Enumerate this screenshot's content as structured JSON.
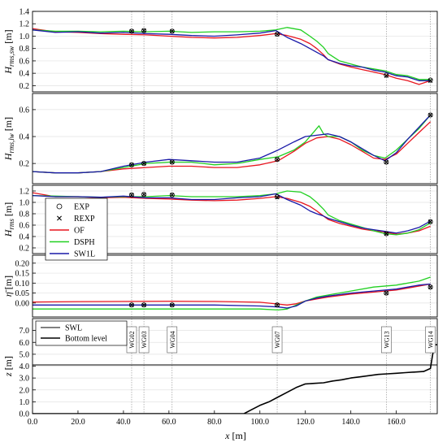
{
  "figure": {
    "x_axis": {
      "label_main": "x",
      "label_unit": " [m]",
      "ticks": [
        "0.0",
        "20.0",
        "40.0",
        "60.0",
        "80.0",
        "100.0",
        "120.0",
        "140.0",
        "160.0"
      ]
    },
    "legend_top": {
      "items": [
        {
          "label": "EXP",
          "marker": "circle"
        },
        {
          "label": "REXP",
          "marker": "cross"
        },
        {
          "label": "OF",
          "color": "#e8151f"
        },
        {
          "label": "DSPH",
          "color": "#22d022"
        },
        {
          "label": "SW1L",
          "color": "#1a1aa8"
        }
      ]
    },
    "legend_bottom": {
      "items": [
        {
          "label": "SWL"
        },
        {
          "label": "Bottom level"
        }
      ]
    },
    "gauge_labels": [
      "WG02",
      "WG03",
      "WG04",
      "WG07",
      "WG13",
      "WG14"
    ]
  },
  "chart_data": [
    {
      "type": "line",
      "id": "hrms_sw",
      "ylabel_main": "H",
      "ylabel_sub": "rms,sw",
      "ylabel_unit": " [m]",
      "xlim": [
        0,
        178
      ],
      "ylim": [
        0.1,
        1.4
      ],
      "yticks": [
        "0.2",
        "0.4",
        "0.6",
        "0.8",
        "1.0",
        "1.2",
        "1.4"
      ],
      "gauges_x": [
        43.6,
        49.0,
        61.4,
        107.6,
        155.6,
        175.0
      ],
      "series": [
        {
          "name": "OF",
          "color": "#e8151f",
          "x": [
            0,
            10,
            20,
            30,
            40,
            50,
            60,
            70,
            80,
            90,
            100,
            107,
            112,
            118,
            122,
            125,
            128,
            130,
            135,
            140,
            145,
            150,
            155,
            160,
            165,
            170,
            175
          ],
          "y": [
            1.12,
            1.07,
            1.06,
            1.04,
            1.03,
            1.02,
            1.0,
            0.98,
            0.97,
            0.98,
            1.01,
            1.04,
            1.01,
            0.95,
            0.88,
            0.8,
            0.7,
            0.62,
            0.55,
            0.5,
            0.46,
            0.42,
            0.38,
            0.32,
            0.28,
            0.22,
            0.28
          ]
        },
        {
          "name": "DSPH",
          "color": "#22d022",
          "x": [
            0,
            10,
            20,
            30,
            40,
            50,
            60,
            70,
            80,
            90,
            100,
            107,
            112,
            118,
            122,
            125,
            128,
            130,
            135,
            140,
            145,
            150,
            155,
            160,
            165,
            170,
            175
          ],
          "y": [
            1.1,
            1.08,
            1.08,
            1.07,
            1.08,
            1.07,
            1.08,
            1.06,
            1.07,
            1.07,
            1.08,
            1.1,
            1.14,
            1.1,
            1.0,
            0.92,
            0.82,
            0.72,
            0.6,
            0.55,
            0.5,
            0.47,
            0.44,
            0.38,
            0.36,
            0.3,
            0.3
          ]
        },
        {
          "name": "SW1L",
          "color": "#1a1aa8",
          "x": [
            0,
            10,
            20,
            30,
            40,
            50,
            60,
            70,
            80,
            90,
            100,
            107,
            112,
            118,
            122,
            125,
            128,
            130,
            135,
            140,
            145,
            150,
            155,
            160,
            165,
            170,
            175
          ],
          "y": [
            1.1,
            1.06,
            1.07,
            1.05,
            1.06,
            1.04,
            1.03,
            1.01,
            1.0,
            1.02,
            1.05,
            1.09,
            0.98,
            0.88,
            0.8,
            0.74,
            0.68,
            0.62,
            0.56,
            0.52,
            0.5,
            0.45,
            0.42,
            0.36,
            0.34,
            0.28,
            0.28
          ]
        },
        {
          "name": "EXP",
          "marker": "circle",
          "x": [
            43.6,
            49.0,
            61.4,
            107.6,
            155.6,
            175.0
          ],
          "y": [
            1.08,
            1.09,
            1.08,
            1.03,
            0.37,
            0.29
          ]
        },
        {
          "name": "REXP",
          "marker": "cross",
          "x": [
            43.6,
            49.0,
            61.4,
            107.6,
            155.6,
            175.0
          ],
          "y": [
            1.08,
            1.09,
            1.08,
            1.03,
            0.36,
            0.28
          ]
        }
      ]
    },
    {
      "type": "line",
      "id": "hrms_lw",
      "ylabel_main": "H",
      "ylabel_sub": "rms,lw",
      "ylabel_unit": " [m]",
      "xlim": [
        0,
        178
      ],
      "ylim": [
        0.05,
        0.72
      ],
      "yticks": [
        "0.2",
        "0.4",
        "0.6"
      ],
      "gauges_x": [
        43.6,
        49.0,
        61.4,
        107.6,
        155.6,
        175.0
      ],
      "series": [
        {
          "name": "OF",
          "color": "#e8151f",
          "x": [
            0,
            10,
            20,
            30,
            40,
            50,
            60,
            70,
            80,
            90,
            100,
            108,
            115,
            120,
            125,
            130,
            135,
            140,
            145,
            150,
            155,
            160,
            165,
            170,
            175
          ],
          "y": [
            0.14,
            0.13,
            0.13,
            0.14,
            0.16,
            0.17,
            0.18,
            0.18,
            0.17,
            0.17,
            0.19,
            0.22,
            0.29,
            0.35,
            0.39,
            0.4,
            0.38,
            0.34,
            0.29,
            0.24,
            0.23,
            0.27,
            0.35,
            0.43,
            0.51
          ]
        },
        {
          "name": "DSPH",
          "color": "#22d022",
          "x": [
            0,
            10,
            20,
            30,
            40,
            50,
            60,
            70,
            80,
            90,
            100,
            108,
            115,
            120,
            124,
            126,
            128,
            130,
            135,
            140,
            145,
            150,
            155,
            160,
            165,
            170,
            175
          ],
          "y": [
            0.14,
            0.13,
            0.13,
            0.14,
            0.17,
            0.2,
            0.21,
            0.21,
            0.19,
            0.2,
            0.23,
            0.25,
            0.3,
            0.36,
            0.44,
            0.48,
            0.42,
            0.4,
            0.4,
            0.36,
            0.3,
            0.26,
            0.24,
            0.3,
            0.38,
            0.46,
            0.56
          ]
        },
        {
          "name": "SW1L",
          "color": "#1a1aa8",
          "x": [
            0,
            10,
            20,
            30,
            40,
            50,
            60,
            70,
            80,
            90,
            100,
            108,
            115,
            120,
            125,
            130,
            135,
            140,
            145,
            150,
            155,
            160,
            165,
            170,
            175
          ],
          "y": [
            0.14,
            0.13,
            0.13,
            0.14,
            0.18,
            0.21,
            0.23,
            0.22,
            0.21,
            0.21,
            0.24,
            0.3,
            0.36,
            0.4,
            0.41,
            0.42,
            0.4,
            0.36,
            0.31,
            0.26,
            0.22,
            0.28,
            0.38,
            0.47,
            0.56
          ]
        },
        {
          "name": "EXP",
          "marker": "circle",
          "x": [
            43.6,
            49.0,
            61.4,
            107.6,
            155.6,
            175.0
          ],
          "y": [
            0.19,
            0.2,
            0.21,
            0.23,
            0.21,
            0.56
          ]
        },
        {
          "name": "REXP",
          "marker": "cross",
          "x": [
            43.6,
            49.0,
            61.4,
            107.6,
            155.6,
            175.0
          ],
          "y": [
            0.19,
            0.2,
            0.21,
            0.23,
            0.21,
            0.56
          ]
        }
      ]
    },
    {
      "type": "line",
      "id": "hrms",
      "ylabel_main": "H",
      "ylabel_sub": "rms",
      "ylabel_unit": " [m]",
      "xlim": [
        0,
        178
      ],
      "ylim": [
        0.1,
        1.3
      ],
      "yticks": [
        "0.2",
        "0.4",
        "0.6",
        "0.8",
        "1.0",
        "1.2"
      ],
      "gauges_x": [
        43.6,
        49.0,
        61.4,
        107.6,
        155.6,
        175.0
      ],
      "series": [
        {
          "name": "OF",
          "color": "#e8151f",
          "x": [
            0,
            10,
            20,
            30,
            40,
            50,
            60,
            70,
            80,
            90,
            100,
            107,
            112,
            118,
            122,
            125,
            128,
            130,
            135,
            140,
            145,
            150,
            155,
            160,
            165,
            170,
            175
          ],
          "y": [
            1.17,
            1.1,
            1.1,
            1.08,
            1.09,
            1.07,
            1.06,
            1.04,
            1.03,
            1.04,
            1.07,
            1.1,
            1.07,
            1.0,
            0.93,
            0.85,
            0.76,
            0.7,
            0.63,
            0.58,
            0.53,
            0.5,
            0.48,
            0.44,
            0.46,
            0.5,
            0.58
          ]
        },
        {
          "name": "DSPH",
          "color": "#22d022",
          "x": [
            0,
            10,
            20,
            30,
            40,
            50,
            60,
            70,
            80,
            90,
            100,
            107,
            112,
            118,
            122,
            125,
            128,
            130,
            135,
            140,
            145,
            150,
            155,
            160,
            165,
            170,
            175
          ],
          "y": [
            1.12,
            1.11,
            1.1,
            1.09,
            1.1,
            1.1,
            1.12,
            1.1,
            1.1,
            1.1,
            1.12,
            1.15,
            1.2,
            1.18,
            1.1,
            1.0,
            0.88,
            0.78,
            0.68,
            0.62,
            0.56,
            0.5,
            0.45,
            0.43,
            0.46,
            0.52,
            0.64
          ]
        },
        {
          "name": "SW1L",
          "color": "#1a1aa8",
          "x": [
            0,
            10,
            20,
            30,
            40,
            50,
            60,
            70,
            80,
            90,
            100,
            107,
            112,
            118,
            122,
            125,
            128,
            130,
            135,
            140,
            145,
            150,
            155,
            160,
            165,
            170,
            175
          ],
          "y": [
            1.12,
            1.1,
            1.1,
            1.09,
            1.11,
            1.08,
            1.08,
            1.05,
            1.05,
            1.08,
            1.1,
            1.15,
            1.05,
            0.95,
            0.85,
            0.8,
            0.76,
            0.72,
            0.66,
            0.6,
            0.55,
            0.52,
            0.49,
            0.46,
            0.5,
            0.56,
            0.67
          ]
        },
        {
          "name": "EXP",
          "marker": "circle",
          "x": [
            43.6,
            49.0,
            61.4,
            107.6,
            155.6,
            175.0
          ],
          "y": [
            1.13,
            1.14,
            1.13,
            1.1,
            0.45,
            0.66
          ]
        },
        {
          "name": "REXP",
          "marker": "cross",
          "x": [
            43.6,
            49.0,
            61.4,
            107.6,
            155.6,
            175.0
          ],
          "y": [
            1.13,
            1.14,
            1.13,
            1.09,
            0.45,
            0.66
          ]
        }
      ]
    },
    {
      "type": "line",
      "id": "setup",
      "ylabel_main": "η̄",
      "ylabel_unit": " [m]",
      "xlim": [
        0,
        178
      ],
      "ylim": [
        -0.07,
        0.24
      ],
      "yticks": [
        "0.00",
        "0.05",
        "0.10",
        "0.15",
        "0.20"
      ],
      "gauges_x": [
        43.6,
        49.0,
        61.4,
        107.6,
        155.6,
        175.0
      ],
      "series": [
        {
          "name": "OF",
          "color": "#e8151f",
          "x": [
            0,
            20,
            40,
            60,
            80,
            100,
            108,
            112,
            116,
            120,
            125,
            130,
            140,
            150,
            160,
            170,
            175
          ],
          "y": [
            0.005,
            0.007,
            0.008,
            0.009,
            0.008,
            0.004,
            -0.005,
            -0.01,
            -0.004,
            0.01,
            0.02,
            0.03,
            0.045,
            0.055,
            0.065,
            0.085,
            0.095
          ]
        },
        {
          "name": "DSPH",
          "color": "#22d022",
          "x": [
            0,
            20,
            40,
            60,
            80,
            100,
            108,
            112,
            116,
            120,
            125,
            130,
            140,
            150,
            160,
            170,
            175
          ],
          "y": [
            -0.03,
            -0.03,
            -0.03,
            -0.03,
            -0.03,
            -0.03,
            -0.035,
            -0.03,
            -0.01,
            0.01,
            0.03,
            0.04,
            0.06,
            0.08,
            0.09,
            0.11,
            0.13
          ]
        },
        {
          "name": "SW1L",
          "color": "#1a1aa8",
          "x": [
            0,
            20,
            40,
            60,
            80,
            100,
            108,
            112,
            116,
            120,
            125,
            130,
            140,
            150,
            160,
            170,
            175
          ],
          "y": [
            -0.01,
            -0.01,
            -0.01,
            -0.01,
            -0.01,
            -0.015,
            -0.02,
            -0.025,
            -0.015,
            0.01,
            0.025,
            0.035,
            0.05,
            0.06,
            0.07,
            0.09,
            0.095
          ]
        },
        {
          "name": "EXP",
          "marker": "circle",
          "x": [
            43.6,
            49.0,
            61.4,
            107.6,
            155.6,
            175.0
          ],
          "y": [
            -0.01,
            -0.01,
            -0.01,
            -0.01,
            0.05,
            0.08
          ]
        },
        {
          "name": "REXP",
          "marker": "cross",
          "x": [
            43.6,
            49.0,
            61.4,
            107.6,
            155.6,
            175.0
          ],
          "y": [
            -0.01,
            -0.01,
            -0.01,
            -0.01,
            0.05,
            0.08
          ]
        }
      ]
    },
    {
      "type": "line",
      "id": "bathymetry",
      "ylabel_main": "z",
      "ylabel_unit": " [m]",
      "xlim": [
        0,
        178
      ],
      "ylim": [
        0,
        8
      ],
      "yticks": [
        "0.0",
        "1.0",
        "2.0",
        "3.0",
        "4.0",
        "5.0",
        "6.0",
        "7.0"
      ],
      "gauges_x": [
        43.6,
        49.0,
        61.4,
        107.6,
        155.6,
        175.0
      ],
      "series": [
        {
          "name": "SWL",
          "color": "#000000",
          "x": [
            0,
            178
          ],
          "y": [
            4.1,
            4.1
          ]
        },
        {
          "name": "Bottom level",
          "color": "#000000",
          "x": [
            0,
            93,
            96,
            100,
            104,
            108,
            112,
            116,
            120,
            124,
            128,
            132,
            136,
            140,
            144,
            148,
            152,
            156,
            160,
            164,
            168,
            172,
            175,
            176,
            177,
            178
          ],
          "y": [
            0,
            0,
            0.3,
            0.7,
            1.0,
            1.4,
            1.8,
            2.2,
            2.5,
            2.55,
            2.6,
            2.75,
            2.85,
            3.0,
            3.1,
            3.2,
            3.3,
            3.35,
            3.4,
            3.45,
            3.5,
            3.55,
            3.8,
            5.0,
            5.8,
            5.8
          ]
        }
      ]
    }
  ]
}
